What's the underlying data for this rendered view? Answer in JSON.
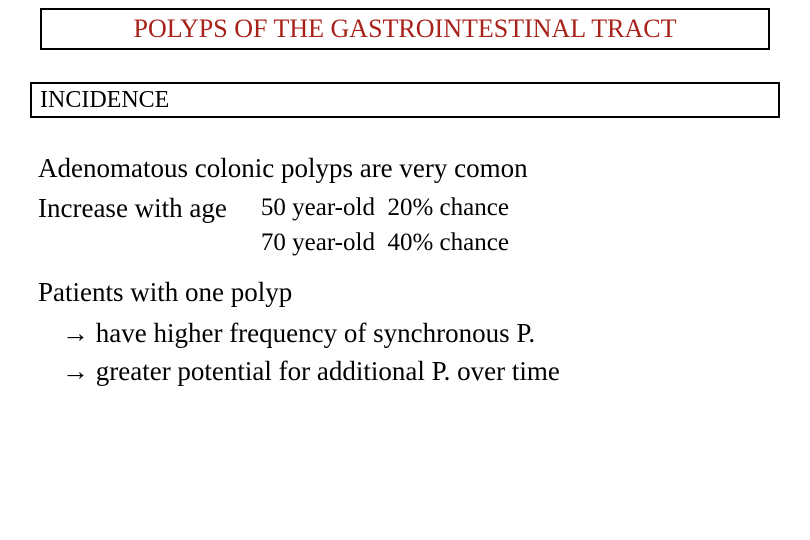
{
  "title": {
    "text": "POLYPS OF THE GASTROINTESTINAL TRACT",
    "color": "#a8221a",
    "fontsize": 26
  },
  "section": {
    "text": "INCIDENCE",
    "fontsize": 24
  },
  "body": {
    "line1": "Adenomatous colonic polyps are very comon",
    "line2_label": "Increase with age",
    "stats": {
      "row1_age": "50 year-old",
      "row1_pct": "20% chance",
      "row2_age": "70 year-old",
      "row2_pct": "40% chance"
    },
    "patients_heading": "Patients with one polyp",
    "bullet1": "→ have higher frequency of synchronous P.",
    "bullet2": "→ greater potential for additional P. over time"
  },
  "style": {
    "background": "#ffffff",
    "border_color": "#000000",
    "body_fontsize": 27,
    "stats_fontsize": 25,
    "font_family": "Times New Roman"
  }
}
